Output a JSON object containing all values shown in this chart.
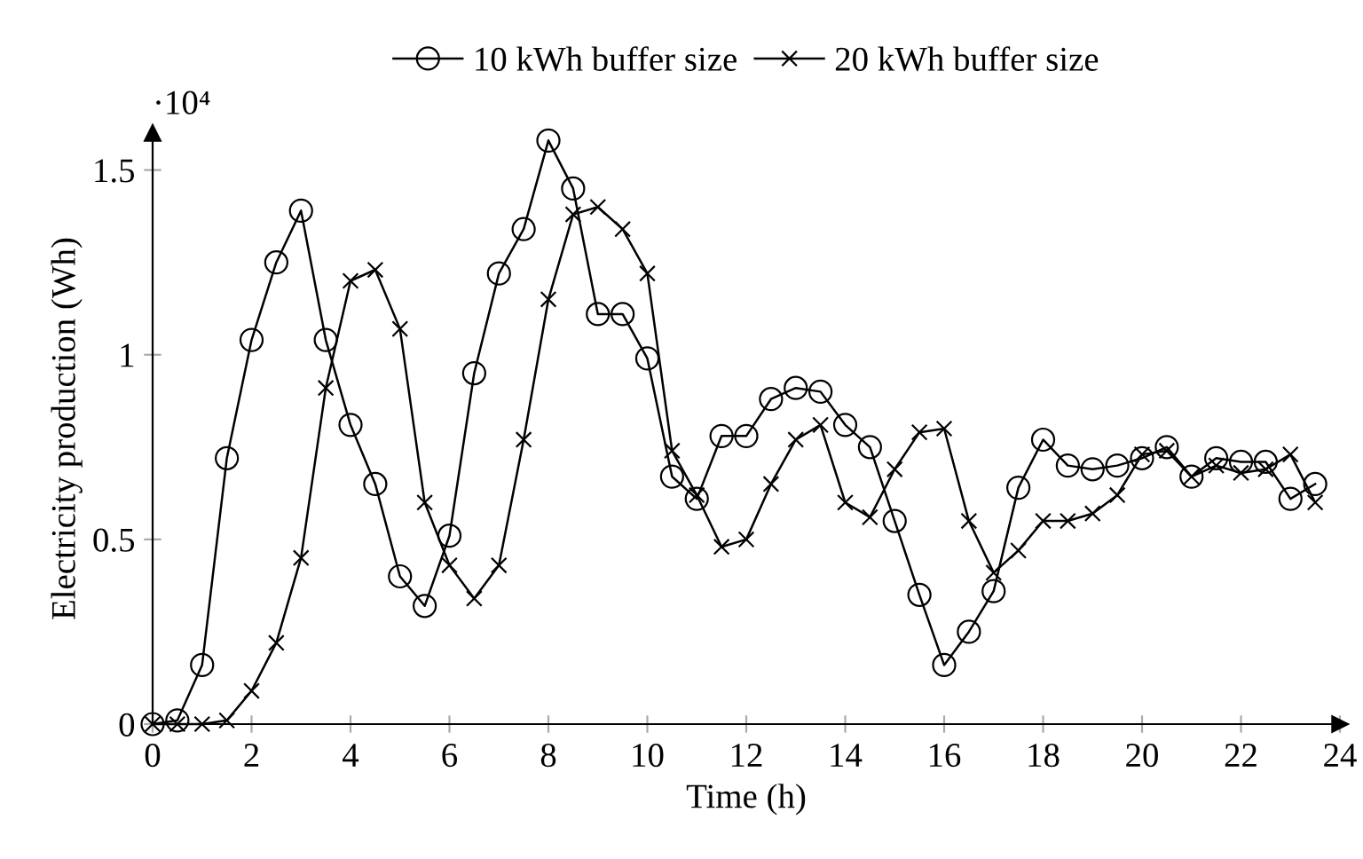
{
  "chart_data": {
    "type": "line",
    "xlabel": "Time (h)",
    "ylabel": "Electricity production (Wh)",
    "x": [
      0,
      0.5,
      1,
      1.5,
      2,
      2.5,
      3,
      3.5,
      4,
      4.5,
      5,
      5.5,
      6,
      6.5,
      7,
      7.5,
      8,
      8.5,
      9,
      9.5,
      10,
      10.5,
      11,
      11.5,
      12,
      12.5,
      13,
      13.5,
      14,
      14.5,
      15,
      15.5,
      16,
      16.5,
      17,
      17.5,
      18,
      18.5,
      19,
      19.5,
      20,
      20.5,
      21,
      21.5,
      22,
      22.5,
      23,
      23.5
    ],
    "series": [
      {
        "name": "10 kWh buffer size",
        "color": "#000000",
        "marker": "circle",
        "values": [
          0,
          0.01,
          0.16,
          0.72,
          1.04,
          1.25,
          1.39,
          1.04,
          0.81,
          0.65,
          0.4,
          0.32,
          0.51,
          0.95,
          1.22,
          1.34,
          1.58,
          1.45,
          1.11,
          1.11,
          0.99,
          0.67,
          0.61,
          0.78,
          0.78,
          0.88,
          0.91,
          0.9,
          0.81,
          0.75,
          0.55,
          0.35,
          0.16,
          0.25,
          0.36,
          0.64,
          0.77,
          0.7,
          0.69,
          0.7,
          0.72,
          0.75,
          0.67,
          0.72,
          0.71,
          0.71,
          0.61,
          0.65
        ]
      },
      {
        "name": "20 kWh buffer size",
        "color": "#000000",
        "marker": "cross",
        "values": [
          0,
          0,
          0,
          0.01,
          0.09,
          0.22,
          0.45,
          0.91,
          1.2,
          1.23,
          1.07,
          0.6,
          0.43,
          0.34,
          0.43,
          0.77,
          1.15,
          1.38,
          1.4,
          1.34,
          1.22,
          0.74,
          0.62,
          0.48,
          0.5,
          0.65,
          0.77,
          0.81,
          0.6,
          0.56,
          0.69,
          0.79,
          0.8,
          0.55,
          0.41,
          0.47,
          0.55,
          0.55,
          0.57,
          0.62,
          0.73,
          0.74,
          0.67,
          0.7,
          0.68,
          0.69,
          0.73,
          0.6
        ]
      }
    ],
    "xlim": [
      0,
      24
    ],
    "xticks": [
      0,
      2,
      4,
      6,
      8,
      10,
      12,
      14,
      16,
      18,
      20,
      22,
      24
    ],
    "ylim": [
      0,
      1.6
    ],
    "yticks": [
      0,
      0.5,
      1,
      1.5
    ],
    "annotations": [
      "·10⁴"
    ],
    "legend": "top",
    "grid": false,
    "line_style": "solid"
  }
}
